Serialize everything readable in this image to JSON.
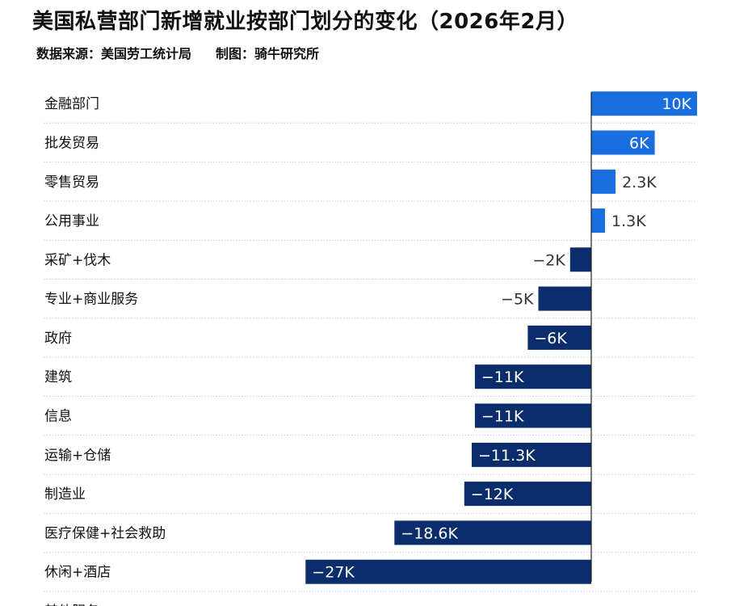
{
  "header": {
    "title": "美国私营部门新增就业按部门划分的变化（2026年2月）",
    "source": "数据来源：美国劳工统计局",
    "credit": "制图：骑牛研究所"
  },
  "colors": {
    "positive": "#1a6fe0",
    "negative": "#0b2d6b",
    "axis": "#222222",
    "grid": "#cccccc"
  },
  "chart_data": {
    "type": "bar",
    "orientation": "horizontal",
    "categories": [
      "金融部门",
      "批发贸易",
      "零售贸易",
      "公用事业",
      "采矿+伐木",
      "专业+商业服务",
      "政府",
      "建筑",
      "信息",
      "运输+仓储",
      "制造业",
      "医疗保健+社会救助",
      "休闲+酒店",
      "其他服务"
    ],
    "values": [
      10,
      6,
      2.3,
      1.3,
      -2,
      -5,
      -6,
      -11,
      -11,
      -11.3,
      -12,
      -18.6,
      -27,
      null
    ],
    "labels": [
      "10K",
      "6K",
      "2.3K",
      "1.3K",
      "−2K",
      "−5K",
      "−6K",
      "−11K",
      "−11K",
      "−11.3K",
      "−12K",
      "−18.6K",
      "−27K",
      ""
    ],
    "unit": "K",
    "grid": false
  }
}
